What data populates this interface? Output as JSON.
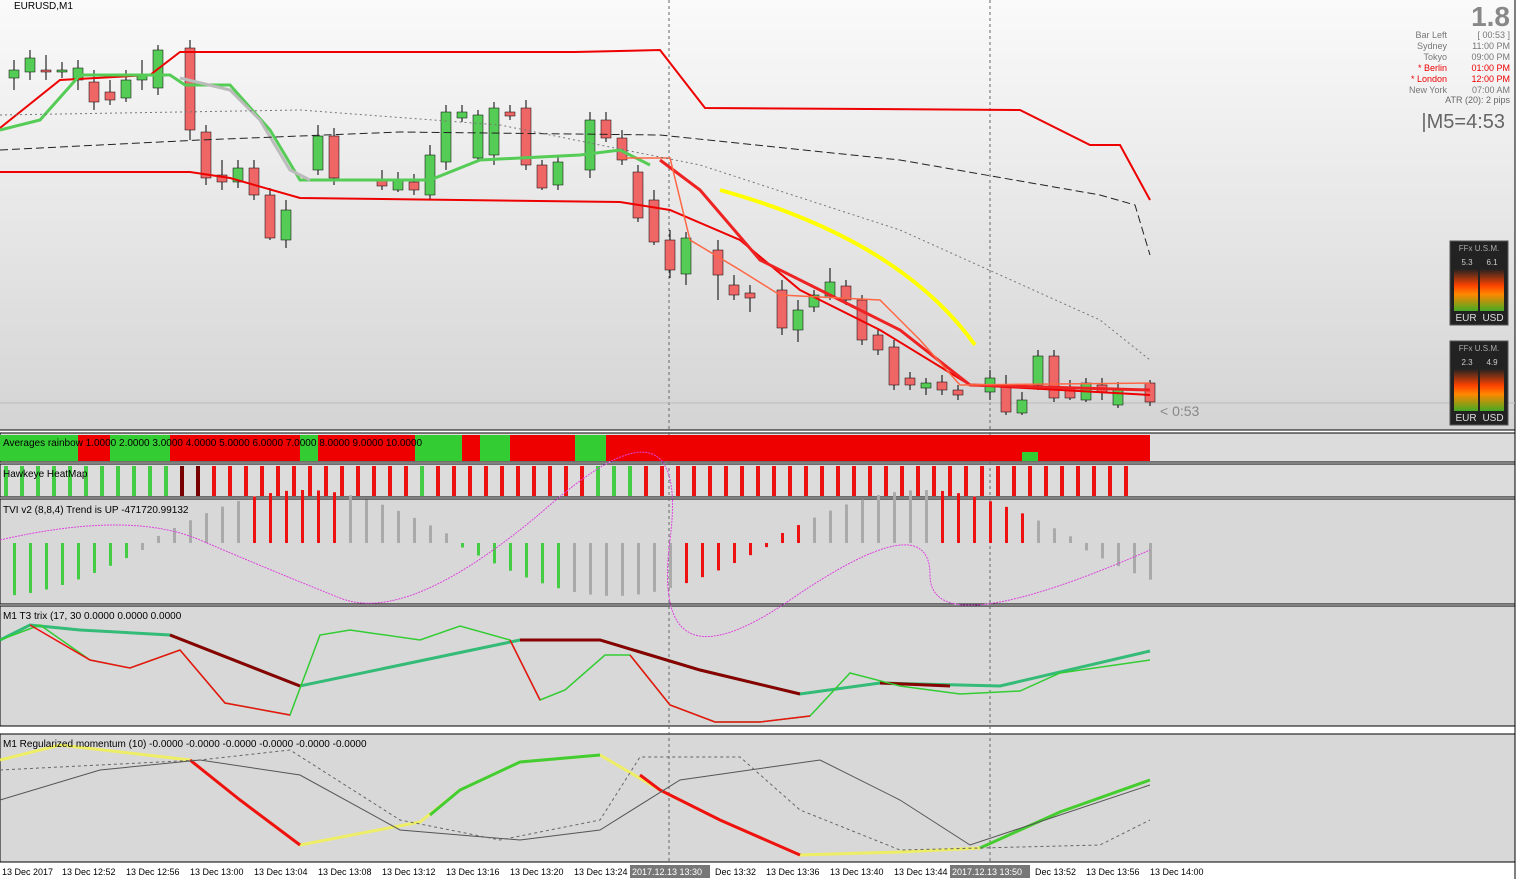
{
  "window": {
    "title": "EURUSD,M1",
    "spread": "1.8",
    "clock": "|M5=4:53",
    "bar_timer": "< 0:53"
  },
  "info_panel": {
    "rows": [
      [
        "Bar Left",
        "[ 00:53 ]"
      ],
      [
        "Sydney",
        "11:00 PM"
      ],
      [
        "Tokyo",
        "09:00 PM"
      ],
      [
        "* Berlin",
        "01:00 PM"
      ],
      [
        "* London",
        "12:00 PM"
      ],
      [
        "New York",
        "07:00 AM"
      ]
    ],
    "atr": "ATR (20): 2 pips"
  },
  "widgets": [
    {
      "title": "FFx U.S.M.",
      "left_value": "5.3",
      "right_value": "6.1",
      "left_currency": "EUR",
      "right_currency": "USD"
    },
    {
      "title": "FFx U.S.M.",
      "left_value": "2.3",
      "right_value": "4.9",
      "left_currency": "EUR",
      "right_currency": "USD"
    }
  ],
  "indicators": [
    "Averages rainbow 1.0000 2.0000 3.0000 4.0000 5.0000 6.0000 7.0000 8.0000 9.0000 10.0000",
    "Hawkeye HeatMap",
    "TVI v2 (8,8,4) Trend is UP -471720.99132",
    "M1 T3 trix (17, 30 0.0000 0.0000 0.0000",
    "M1 Regularized momentum (10) -0.0000 -0.0000 -0.0000 -0.0000 -0.0000 -0.0000"
  ],
  "time_axis": [
    "13 Dec 2017",
    "13 Dec 12:52",
    "13 Dec 12:56",
    "13 Dec 13:00",
    "13 Dec 13:04",
    "13 Dec 13:08",
    "13 Dec 13:12",
    "13 Dec 13:16",
    "13 Dec 13:20",
    "13 Dec 13:24",
    "2017.12.13 13:30",
    "Dec 13:32",
    "13 Dec 13:36",
    "13 Dec 13:40",
    "13 Dec 13:44",
    "2017.12.13 13:50",
    "Dec 13:52",
    "13 Dec 13:56",
    "13 Dec 14:00"
  ]
}
